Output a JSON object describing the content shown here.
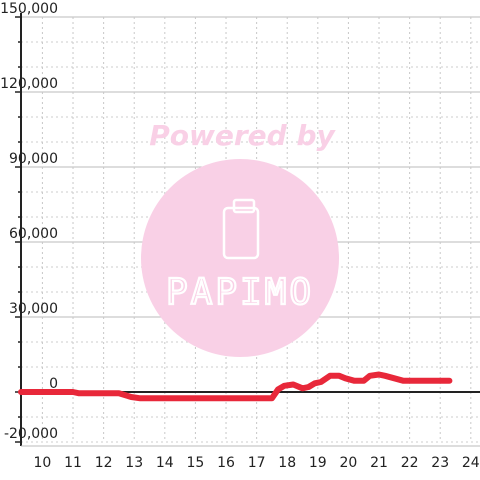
{
  "watermark": {
    "tagline": "Powered by",
    "brand": "PAPIMO",
    "color": "#f9d0e6"
  },
  "chart_data": {
    "type": "line",
    "title": "",
    "xlabel": "",
    "ylabel": "",
    "xlim": [
      9.3,
      24.3
    ],
    "ylim": [
      -20000,
      150000
    ],
    "x_ticks": [
      10,
      11,
      12,
      13,
      14,
      15,
      16,
      17,
      18,
      19,
      20,
      21,
      22,
      23,
      24
    ],
    "y_ticks": [
      -20000,
      0,
      30000,
      60000,
      90000,
      120000,
      150000
    ],
    "y_tick_labels": [
      "-20,000",
      "0",
      "30,000",
      "60,000",
      "90,000",
      "120,000",
      "150,000"
    ],
    "grid": true,
    "series": [
      {
        "color": "#e8283a",
        "x": [
          9.3,
          10,
          11,
          11.2,
          12,
          12.5,
          12.9,
          13.2,
          14,
          15,
          16,
          17,
          17.5,
          17.7,
          17.9,
          18.2,
          18.5,
          18.7,
          18.9,
          19.1,
          19.4,
          19.7,
          19.9,
          20.2,
          20.5,
          20.7,
          21,
          21.2,
          21.5,
          21.8,
          22.2,
          22.6,
          23,
          23.3
        ],
        "y": [
          0,
          0,
          0,
          -500,
          -500,
          -500,
          -2000,
          -2500,
          -2500,
          -2500,
          -2500,
          -2500,
          -2500,
          1000,
          2500,
          3000,
          1500,
          2000,
          3500,
          4000,
          6500,
          6500,
          5500,
          4500,
          4500,
          6500,
          7000,
          6500,
          5500,
          4500,
          4500,
          4500,
          4500,
          4500
        ]
      }
    ]
  }
}
